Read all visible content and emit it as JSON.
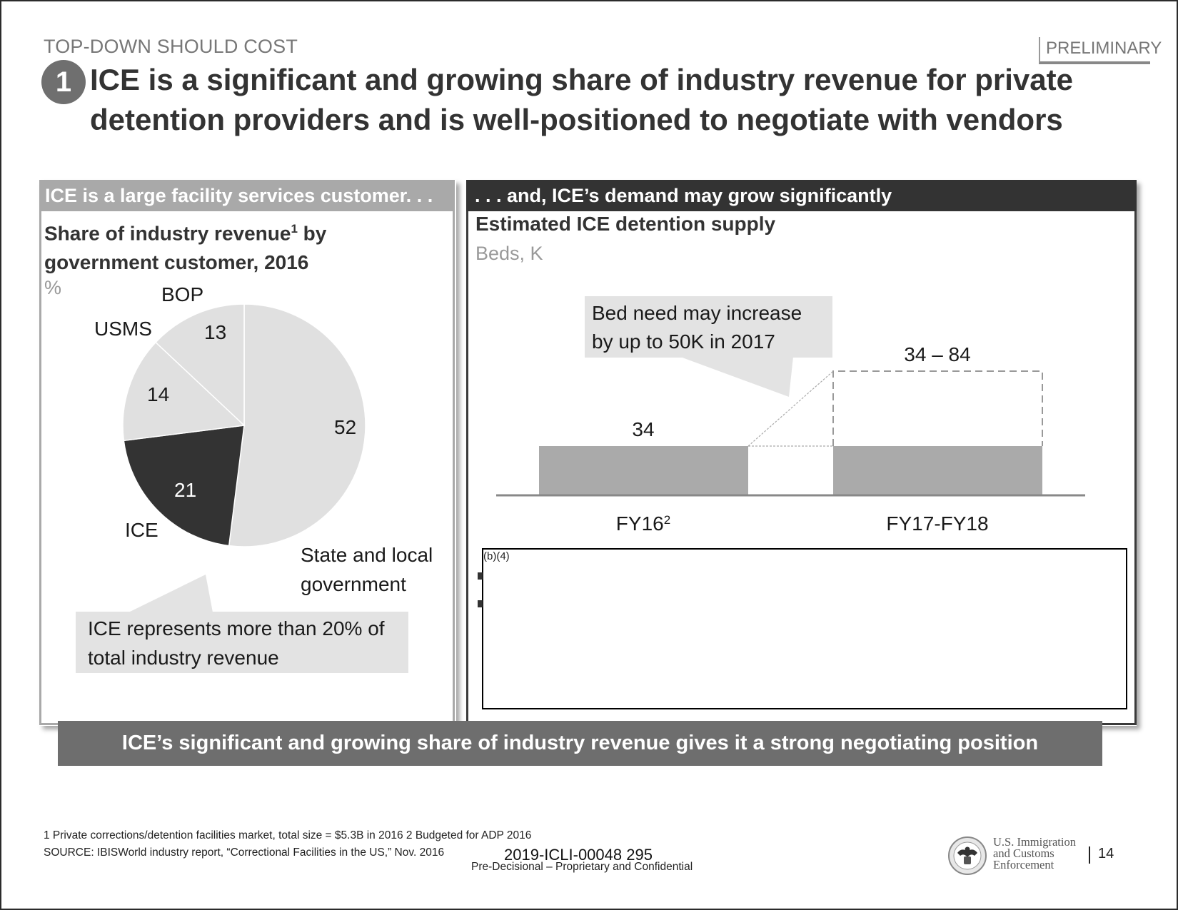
{
  "header": {
    "tracker": "TOP-DOWN SHOULD COST",
    "status_tag": "PRELIMINARY",
    "step_number": "1",
    "title": "ICE is a significant and growing share of industry revenue for private detention providers and is well-positioned to negotiate with vendors"
  },
  "left_panel": {
    "header": "ICE is a large facility services customer. . .",
    "chart_title_part1": "Share of industry revenue",
    "chart_title_sup": "1",
    "chart_title_part2": " by government customer, 2016",
    "unit": "%",
    "callout": "ICE represents more than 20% of total industry revenue"
  },
  "right_panel": {
    "header": ". . . and, ICE’s demand may grow significantly",
    "chart_title": "Estimated ICE detention supply",
    "unit": "Beds, K",
    "callout": "Bed need may increase by up to 50K in 2017",
    "redaction_label": "(b)(4)"
  },
  "banner": "ICE’s significant and growing share of industry revenue gives it a strong negotiating position",
  "footer": {
    "footnote_1": "1 Private corrections/detention facilities market, total size = $5.3B in 2016 2 Budgeted for ADP 2016",
    "source": "SOURCE: IBISWorld industry report, “Correctional Facilities in the US,” Nov. 2016",
    "document_id": "2019-ICLI-00048   295",
    "confidentiality": "Pre-Decisional – Proprietary and Confidential",
    "agency_line1": "U.S. Immigration",
    "agency_line2": "and Customs",
    "agency_line3": "Enforcement",
    "page_number": "14",
    "logo_icon": "dhs-seal-icon"
  },
  "colors": {
    "dark": "#333333",
    "mid_gray": "#a9a9a9",
    "banner_gray": "#6e6e6e",
    "light_gray": "#e0e0e0",
    "bar_gray": "#aaaaaa"
  },
  "chart_data": [
    {
      "type": "pie",
      "title": "Share of industry revenue by government customer, 2016",
      "unit": "%",
      "categories": [
        "State and local government",
        "ICE",
        "USMS",
        "BOP"
      ],
      "values": [
        52,
        21,
        14,
        13
      ],
      "labels": [
        "State and local\ngovernment",
        "ICE",
        "USMS",
        "BOP"
      ],
      "highlight": "ICE"
    },
    {
      "type": "bar",
      "title": "Estimated ICE detention supply",
      "ylabel": "Beds, K",
      "categories": [
        "FY16",
        "FY17-FY18"
      ],
      "category_superscripts": [
        "2",
        ""
      ],
      "values": [
        34,
        34
      ],
      "range_upper": [
        null,
        84
      ],
      "data_labels": [
        "34",
        "34 – 84"
      ],
      "ylim": [
        0,
        84
      ]
    }
  ]
}
